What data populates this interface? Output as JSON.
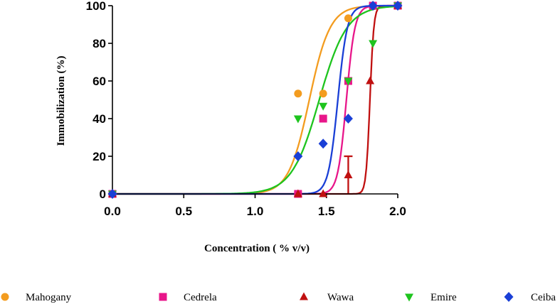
{
  "chart_data": {
    "type": "scatter",
    "title": "",
    "xlabel": "Concentration  ( % v/v)",
    "ylabel": "Immobilization  (%)",
    "xlim": [
      0,
      2.0
    ],
    "ylim": [
      0,
      100
    ],
    "x_ticks": [
      "0.0",
      "0.5",
      "1.0",
      "1.5",
      "2.0"
    ],
    "y_ticks": [
      "0",
      "20",
      "40",
      "60",
      "80",
      "100"
    ],
    "grid": false,
    "legend_position": "bottom",
    "series": [
      {
        "name": "Mahogany",
        "color": "#f39c1f",
        "marker": "circle",
        "x": [
          0,
          1.301,
          1.477,
          1.653,
          1.826,
          2.0
        ],
        "y": [
          0,
          53.3,
          53.3,
          93.3,
          100,
          100
        ],
        "fit": {
          "ec50": 1.38,
          "hill": 6.0
        }
      },
      {
        "name": "Cedrela",
        "color": "#e8168a",
        "marker": "square",
        "x": [
          0,
          1.301,
          1.477,
          1.653,
          1.826,
          2.0
        ],
        "y": [
          0,
          0,
          40,
          60,
          100,
          100
        ],
        "fit": {
          "ec50": 1.64,
          "hill": 14.5
        }
      },
      {
        "name": "Wawa",
        "color": "#c01010",
        "marker": "triangle-up",
        "x": [
          0,
          1.301,
          1.477,
          1.653,
          1.806,
          2.0
        ],
        "y": [
          0,
          0,
          0,
          10,
          60,
          100
        ],
        "error_bar": {
          "x": 1.653,
          "low": 0,
          "high": 20
        },
        "fit": {
          "ec50": 1.805,
          "hill": 32.0
        }
      },
      {
        "name": "Emire",
        "color": "#1ec41e",
        "marker": "triangle-down",
        "x": [
          0,
          1.301,
          1.477,
          1.653,
          1.826,
          2.0
        ],
        "y": [
          0,
          40,
          46.7,
          60,
          80,
          100
        ],
        "fit": {
          "ec50": 1.45,
          "hill": 4.5
        }
      },
      {
        "name": "Ceiba",
        "color": "#1a3fd6",
        "marker": "diamond",
        "x": [
          0,
          1.301,
          1.477,
          1.653,
          1.826,
          2.0
        ],
        "y": [
          0,
          20,
          26.7,
          40,
          100,
          100
        ],
        "fit": {
          "ec50": 1.58,
          "hill": 13.0
        }
      }
    ]
  }
}
